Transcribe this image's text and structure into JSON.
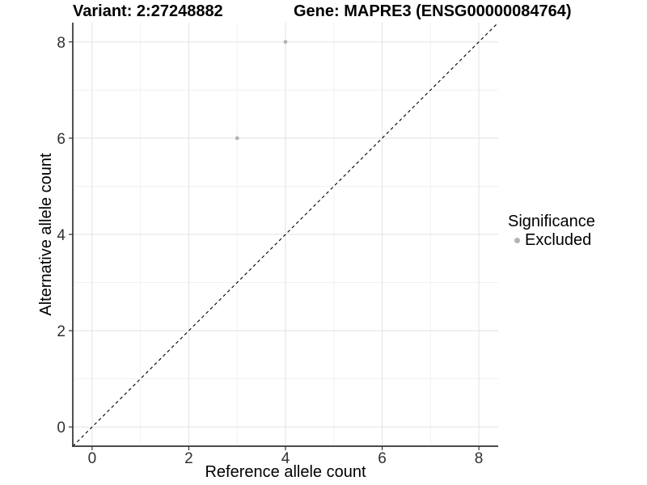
{
  "titles": {
    "variant": "Variant: 2:27248882",
    "gene": "Gene: MAPRE3 (ENSG00000084764)"
  },
  "chart_data": {
    "type": "scatter",
    "title": "Variant: 2:27248882  Gene: MAPRE3 (ENSG00000084764)",
    "xlabel": "Reference allele count",
    "ylabel": "Alternative allele count",
    "xlim": [
      -0.4,
      8.4
    ],
    "ylim": [
      -0.4,
      8.4
    ],
    "xticks": [
      0,
      2,
      4,
      6,
      8
    ],
    "yticks": [
      0,
      2,
      4,
      6,
      8
    ],
    "x_minor_ticks": [
      1,
      3,
      5,
      7
    ],
    "y_minor_ticks": [
      1,
      3,
      5,
      7
    ],
    "grid": "major+minor",
    "series": [
      {
        "name": "Excluded",
        "color": "#b3b3b3",
        "points": [
          {
            "x": 4,
            "y": 8
          },
          {
            "x": 3,
            "y": 6
          }
        ]
      }
    ],
    "reference_line": {
      "kind": "identity y=x",
      "style": "dashed",
      "color": "#000000"
    },
    "legend": {
      "title": "Significance",
      "position": "right",
      "items": [
        {
          "label": "Excluded",
          "color": "#b3b3b3"
        }
      ]
    }
  },
  "colors": {
    "background": "#ffffff",
    "axis_line": "#333333",
    "tick_label": "#303030",
    "grid_major": "#e6e6e6",
    "grid_minor": "#f1f1f1",
    "point": "#b3b3b3",
    "dashed_line": "#000000"
  }
}
